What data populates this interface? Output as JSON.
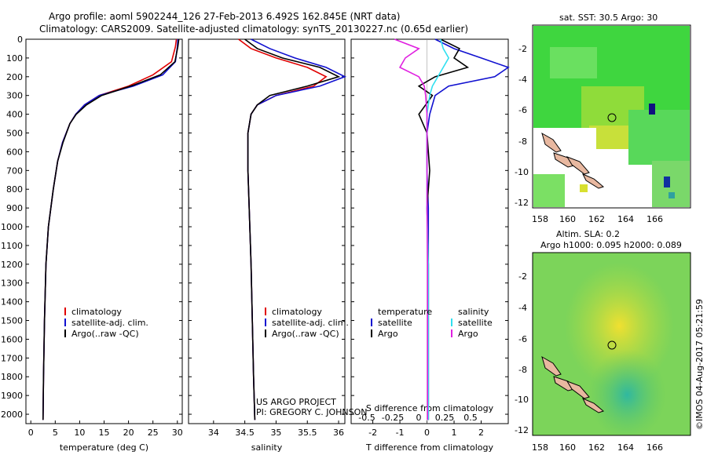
{
  "header": {
    "line1": "Argo profile: aoml 5902244_126 27-Feb-2013 6.492S 162.845E (NRT data)",
    "line2": "Climatology: CARS2009. Satellite-adjusted climatology: synTS_20130227.nc (0.65d earlier)"
  },
  "colors": {
    "climatology": "#e00000",
    "satellite": "#1010d0",
    "argo": "#000000",
    "sat_salinity": "#30e0f0",
    "argo_salinity": "#e020e0"
  },
  "chart_data": [
    {
      "type": "line",
      "xlabel": "temperature (deg C)",
      "xlim": [
        -1,
        31
      ],
      "ylim": [
        2050,
        0
      ],
      "xticks": [
        0,
        5,
        10,
        15,
        20,
        25,
        30
      ],
      "yticks": [
        0,
        100,
        200,
        300,
        400,
        500,
        600,
        700,
        800,
        900,
        1000,
        1100,
        1200,
        1300,
        1400,
        1500,
        1600,
        1700,
        1800,
        1900,
        2000
      ],
      "legend": [
        "climatology",
        "satellite-adj. clim.",
        "Argo(..raw -QC)"
      ],
      "series": [
        {
          "name": "climatology",
          "color": "#e00000",
          "x": [
            29.8,
            29.6,
            28.8,
            25,
            20,
            14,
            11,
            9.2,
            8,
            6.5,
            5.5,
            4.6,
            3.6,
            3.1,
            2.8,
            2.6,
            2.5
          ],
          "y": [
            0,
            40,
            120,
            190,
            250,
            300,
            350,
            400,
            450,
            550,
            650,
            800,
            1000,
            1200,
            1500,
            1800,
            2030
          ]
        },
        {
          "name": "satellite-adj. clim.",
          "color": "#1010d0",
          "x": [
            30.1,
            30.0,
            29.6,
            27,
            21,
            14,
            11,
            9.2,
            8,
            6.5,
            5.5,
            4.6,
            3.6,
            3.1,
            2.8,
            2.6,
            2.5
          ],
          "y": [
            0,
            40,
            120,
            190,
            250,
            300,
            350,
            400,
            450,
            550,
            650,
            800,
            1000,
            1200,
            1500,
            1800,
            2030
          ]
        },
        {
          "name": "Argo(..raw -QC)",
          "color": "#000000",
          "x": [
            30.3,
            30.1,
            29.5,
            26.5,
            21,
            14.5,
            11.4,
            9.3,
            8,
            6.6,
            5.5,
            4.6,
            3.6,
            3.1,
            2.8,
            2.6,
            2.5
          ],
          "y": [
            0,
            40,
            120,
            190,
            245,
            300,
            350,
            400,
            450,
            550,
            650,
            800,
            1000,
            1200,
            1500,
            1800,
            2030
          ]
        }
      ]
    },
    {
      "type": "line",
      "xlabel": "salinity",
      "xlim": [
        33.6,
        36.1
      ],
      "ylim": [
        2050,
        0
      ],
      "xticks": [
        34,
        34.5,
        35,
        35.5,
        36
      ],
      "legend": [
        "climatology",
        "satellite-adj. clim.",
        "Argo(..raw -QC)"
      ],
      "series": [
        {
          "name": "climatology",
          "color": "#e00000",
          "x": [
            34.4,
            34.6,
            35.0,
            35.5,
            35.8,
            35.6,
            35.0,
            34.7,
            34.6,
            34.55,
            34.55,
            34.57,
            34.6,
            34.62,
            34.64,
            34.66
          ],
          "y": [
            0,
            50,
            100,
            150,
            200,
            250,
            300,
            350,
            400,
            500,
            700,
            900,
            1200,
            1500,
            1800,
            2030
          ]
        },
        {
          "name": "satellite-adj. clim.",
          "color": "#1010d0",
          "x": [
            34.6,
            34.9,
            35.3,
            35.8,
            36.1,
            35.7,
            35.0,
            34.7,
            34.6,
            34.55,
            34.55,
            34.57,
            34.6,
            34.62,
            34.64,
            34.66
          ],
          "y": [
            0,
            50,
            100,
            150,
            200,
            250,
            300,
            350,
            400,
            500,
            700,
            900,
            1200,
            1500,
            1800,
            2030
          ]
        },
        {
          "name": "Argo(..raw -QC)",
          "color": "#000000",
          "x": [
            34.5,
            34.7,
            35.1,
            35.7,
            36.0,
            35.5,
            34.9,
            34.7,
            34.6,
            34.55,
            34.55,
            34.57,
            34.6,
            34.62,
            34.64,
            34.66
          ],
          "y": [
            0,
            50,
            100,
            150,
            200,
            250,
            300,
            350,
            400,
            500,
            700,
            900,
            1200,
            1500,
            1800,
            2030
          ]
        }
      ]
    },
    {
      "type": "line",
      "xlabel": "T difference from climatology",
      "xlabel_top": "S difference from climatology",
      "xlim": [
        -2.8,
        3.0
      ],
      "ylim": [
        2050,
        0
      ],
      "xticks": [
        -2,
        -1,
        0,
        1,
        2
      ],
      "xticks_top": [
        "-0.5",
        "-0.25",
        "0",
        "0.25",
        "0.5"
      ],
      "legend": {
        "temperature": [
          "satellite",
          "Argo"
        ],
        "salinity": [
          "satellite",
          "Argo"
        ]
      },
      "series": [
        {
          "name": "temperature satellite",
          "color": "#1010d0",
          "x": [
            0.3,
            1.0,
            2.0,
            3.0,
            2.5,
            0.8,
            0.3,
            0.1,
            0,
            0,
            0.05,
            0.05,
            0.05,
            0.05,
            0.05
          ],
          "y": [
            0,
            50,
            100,
            150,
            200,
            250,
            300,
            400,
            500,
            700,
            900,
            1200,
            1500,
            1800,
            2030
          ]
        },
        {
          "name": "temperature Argo",
          "color": "#000000",
          "x": [
            0.5,
            1.2,
            1.0,
            1.5,
            0.3,
            -0.3,
            0.2,
            -0.3,
            0,
            0.1,
            0,
            0.05,
            0.05,
            0.05,
            0.05
          ],
          "y": [
            0,
            50,
            100,
            150,
            200,
            250,
            300,
            400,
            500,
            700,
            900,
            1200,
            1500,
            1800,
            2030
          ]
        },
        {
          "name": "salinity satellite",
          "color": "#30e0f0",
          "x": [
            0.5,
            0.6,
            0.8,
            0.6,
            0.4,
            0.2,
            0.1,
            0,
            0,
            0,
            0,
            0.05,
            0.05,
            0.05,
            0.05
          ],
          "y": [
            0,
            50,
            100,
            150,
            200,
            250,
            300,
            400,
            500,
            700,
            900,
            1200,
            1500,
            1800,
            2030
          ]
        },
        {
          "name": "salinity Argo",
          "color": "#e020e0",
          "x": [
            -1.2,
            -0.3,
            -0.8,
            -1.0,
            -0.3,
            -0.1,
            -0.05,
            0,
            0,
            0,
            0,
            0.02,
            0.02,
            0.02,
            0.02
          ],
          "y": [
            0,
            50,
            100,
            150,
            200,
            250,
            300,
            400,
            500,
            700,
            900,
            1200,
            1500,
            1800,
            2030
          ]
        }
      ]
    }
  ],
  "credit": {
    "line1": "US ARGO PROJECT",
    "line2": "PI: GREGORY C. JOHNSON"
  },
  "map_top": {
    "title": "sat. SST: 30.5 Argo: 30",
    "yticks": [
      "-2",
      "-4",
      "-6",
      "-8",
      "-10",
      "-12"
    ],
    "xticks": [
      "158",
      "160",
      "162",
      "164",
      "166"
    ]
  },
  "map_bottom": {
    "title1": "Altim. SLA: 0.2",
    "title2": "Argo h1000: 0.095 h2000: 0.089",
    "yticks": [
      "-2",
      "-4",
      "-6",
      "-8",
      "-10",
      "-12"
    ],
    "xticks": [
      "158",
      "160",
      "162",
      "164",
      "166"
    ]
  },
  "stamp": "©IMOS 04-Aug-2017 05:21:59"
}
